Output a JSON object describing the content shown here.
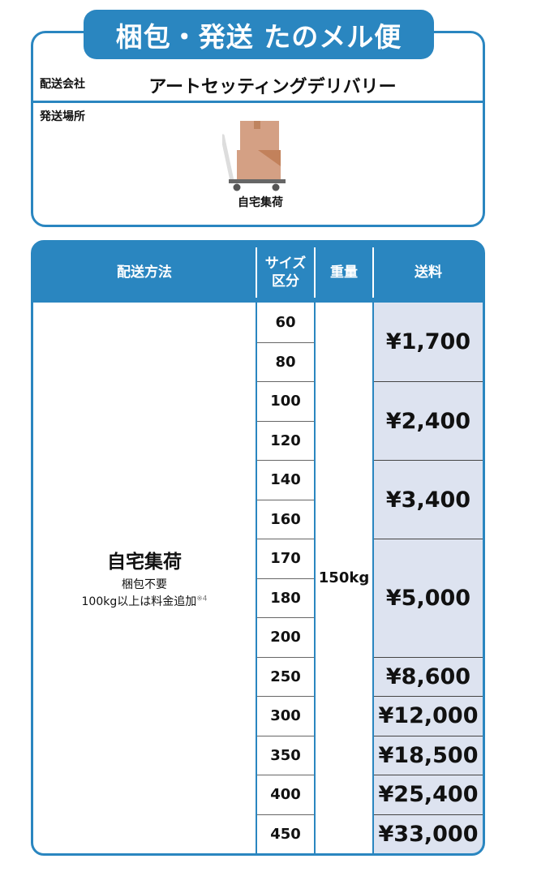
{
  "header": {
    "title": "梱包・発送 たのメル便"
  },
  "info": {
    "company_label": "配送会社",
    "company_value": "アートセッティングデリバリー",
    "location_label": "発送場所",
    "location_icon": "cart-with-boxes-icon",
    "location_value": "自宅集荷"
  },
  "table": {
    "headers": {
      "method": "配送方法",
      "size_line1": "サイズ",
      "size_line2": "区分",
      "weight": "重量",
      "price": "送料"
    },
    "method": {
      "title": "自宅集荷",
      "sub1": "梱包不要",
      "sub2": "100kg以上は料金追加",
      "note": "※4"
    },
    "weight": "150kg",
    "sizes": [
      "60",
      "80",
      "100",
      "120",
      "140",
      "160",
      "170",
      "180",
      "200",
      "250",
      "300",
      "350",
      "400",
      "450"
    ],
    "prices": [
      {
        "value": "¥1,700",
        "sizes": [
          "60",
          "80"
        ]
      },
      {
        "value": "¥2,400",
        "sizes": [
          "100",
          "120"
        ]
      },
      {
        "value": "¥3,400",
        "sizes": [
          "140",
          "160"
        ]
      },
      {
        "value": "¥5,000",
        "sizes": [
          "170",
          "180",
          "200"
        ]
      },
      {
        "value": "¥8,600",
        "sizes": [
          "250"
        ]
      },
      {
        "value": "¥12,000",
        "sizes": [
          "300"
        ]
      },
      {
        "value": "¥18,500",
        "sizes": [
          "350"
        ]
      },
      {
        "value": "¥25,400",
        "sizes": [
          "400"
        ]
      },
      {
        "value": "¥33,000",
        "sizes": [
          "450"
        ]
      }
    ],
    "colors": {
      "accent": "#2a86c0",
      "price_bg": "#dde3f0"
    }
  }
}
